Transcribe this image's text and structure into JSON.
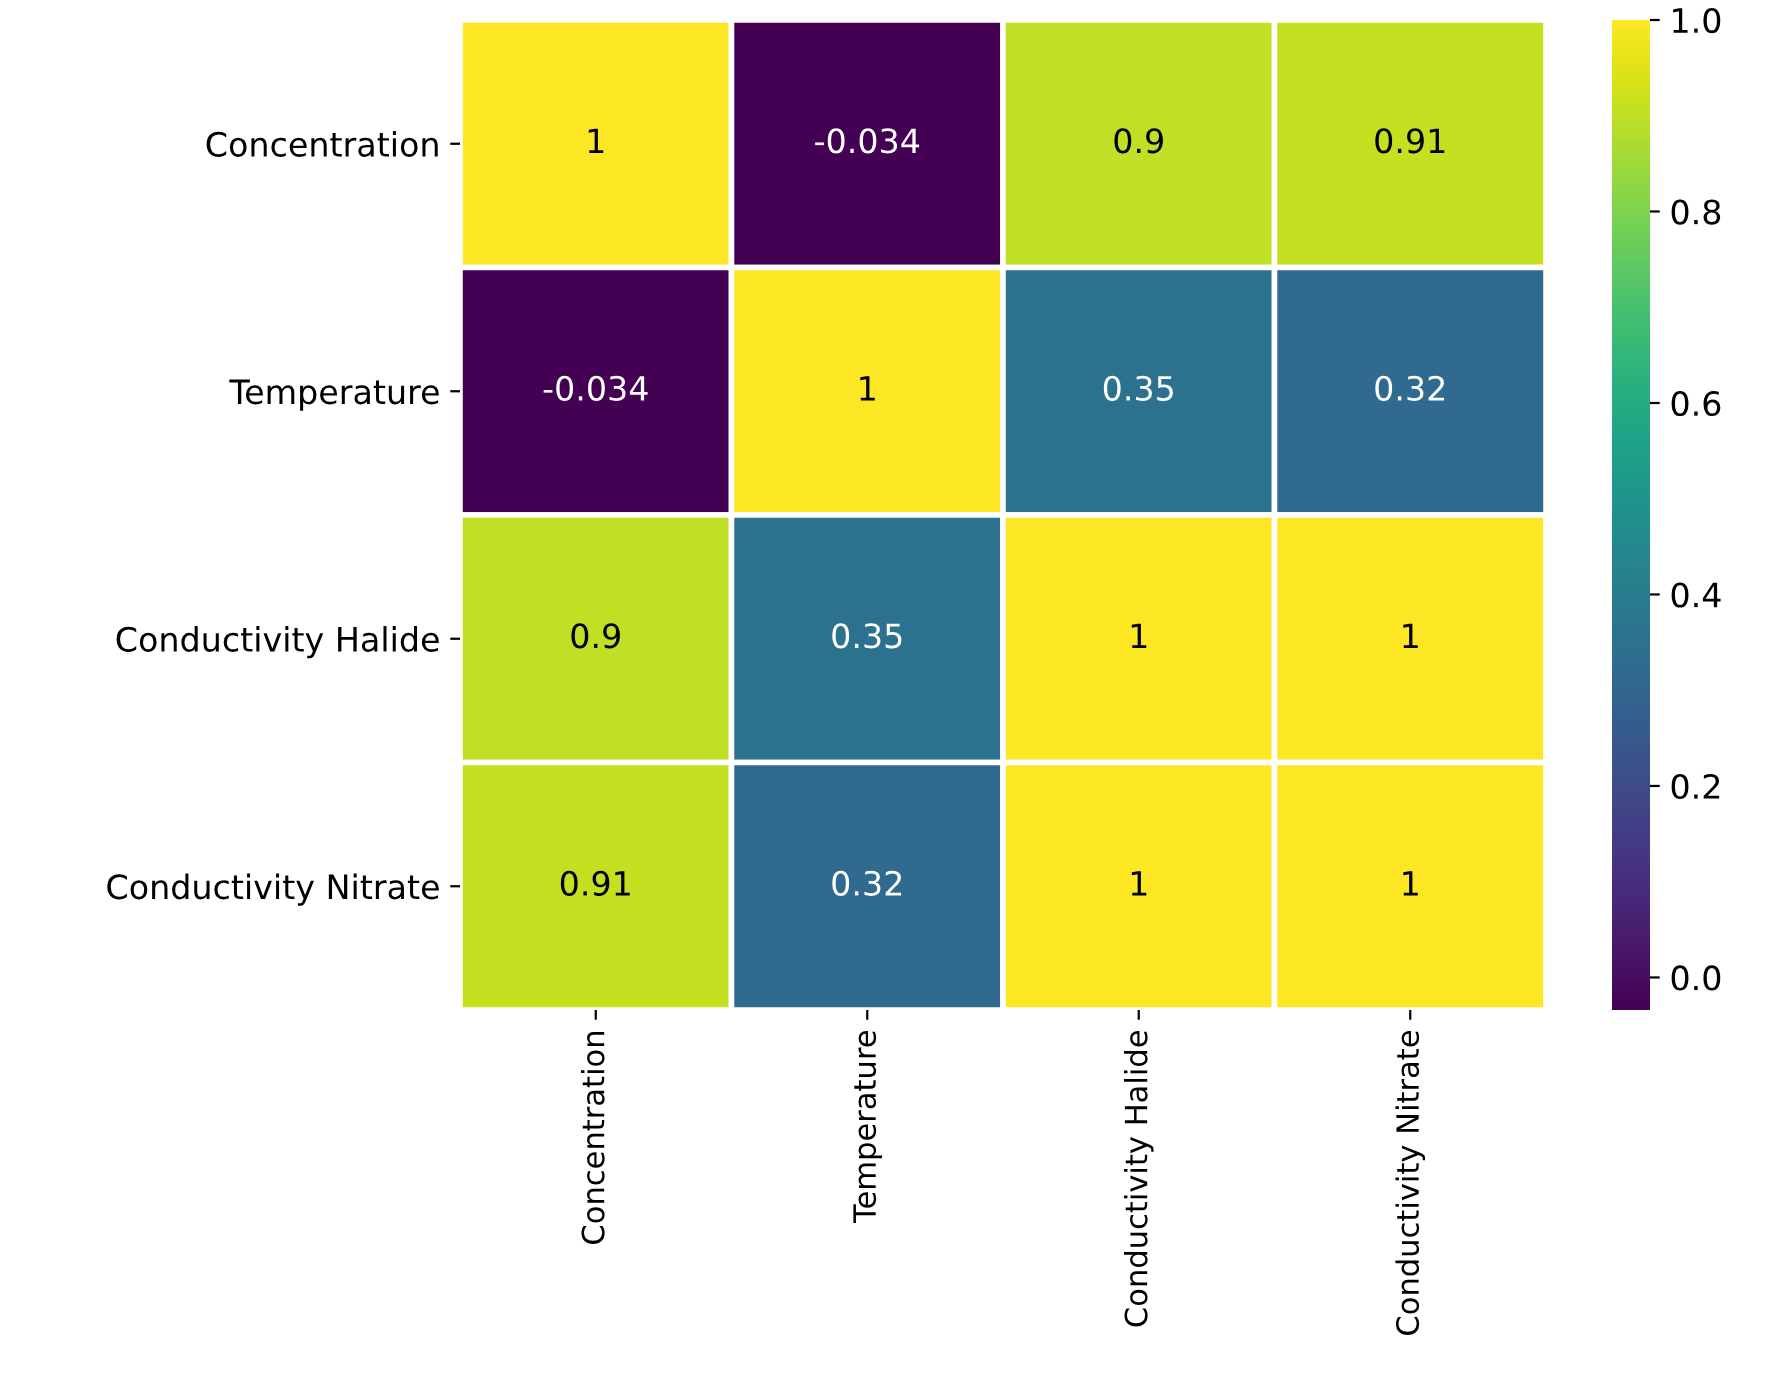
{
  "chart_data": {
    "type": "heatmap",
    "categories": [
      "Concentration",
      "Temperature",
      "Conductivity Halide",
      "Conductivity Nitrate"
    ],
    "y_categories": [
      "Concentration",
      "Temperature",
      "Conductivity Halide",
      "Conductivity Nitrate"
    ],
    "cells": [
      [
        1,
        -0.034,
        0.9,
        0.91
      ],
      [
        -0.034,
        1,
        0.35,
        0.32
      ],
      [
        0.9,
        0.35,
        1,
        1
      ],
      [
        0.91,
        0.32,
        1,
        1
      ]
    ],
    "data_labels": true,
    "clim": [
      -0.034,
      1
    ],
    "cticks": [
      {
        "value": 0,
        "label": "0.0"
      },
      {
        "value": 0.2,
        "label": "0.2"
      },
      {
        "value": 0.4,
        "label": "0.4"
      },
      {
        "value": 0.6,
        "label": "0.6"
      },
      {
        "value": 0.8,
        "label": "0.8"
      },
      {
        "value": 1,
        "label": "1.0"
      }
    ]
  }
}
